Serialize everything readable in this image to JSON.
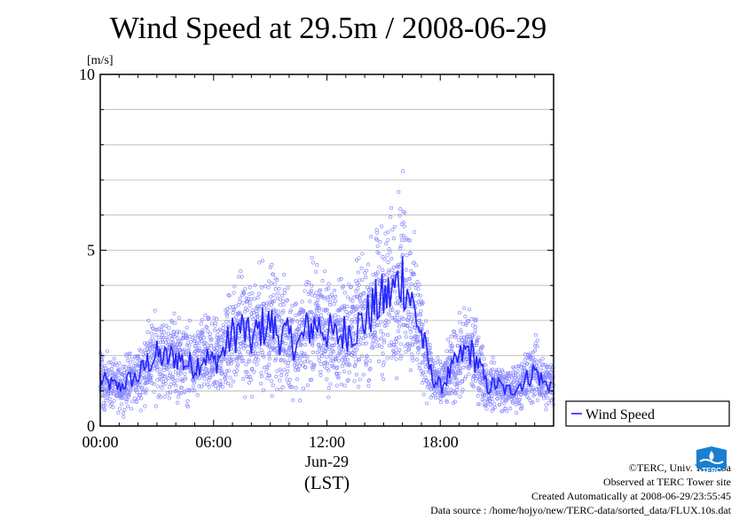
{
  "chart_data": {
    "type": "scatter",
    "title": "Wind Speed at 29.5m / 2008-06-29",
    "ylabel": "[m/s]",
    "ylim": [
      0,
      10
    ],
    "xlim": [
      "00:00",
      "24:00"
    ],
    "x_ticks": [
      "00:00",
      "06:00",
      "12:00",
      "18:00"
    ],
    "x_date_label": "Jun-29",
    "x_zone_label": "(LST)",
    "y_ticks": [
      0,
      5,
      10
    ],
    "grid": true,
    "legend_position": "right",
    "series": [
      {
        "name": "Wind Speed",
        "color": "#3333ff",
        "style": "line",
        "x": [
          "00:00",
          "00:30",
          "01:00",
          "01:30",
          "02:00",
          "02:30",
          "03:00",
          "03:30",
          "04:00",
          "04:30",
          "05:00",
          "05:30",
          "06:00",
          "06:30",
          "07:00",
          "07:30",
          "08:00",
          "08:30",
          "09:00",
          "09:30",
          "10:00",
          "10:30",
          "11:00",
          "11:30",
          "12:00",
          "12:30",
          "13:00",
          "13:30",
          "14:00",
          "14:30",
          "15:00",
          "15:30",
          "16:00",
          "16:30",
          "17:00",
          "17:30",
          "18:00",
          "18:30",
          "19:00",
          "19:30",
          "20:00",
          "20:30",
          "21:00",
          "21:30",
          "22:00",
          "22:30",
          "23:00",
          "23:30"
        ],
        "values": [
          1.3,
          1.2,
          1.1,
          1.3,
          1.4,
          1.8,
          2.0,
          1.9,
          2.0,
          1.8,
          1.7,
          2.0,
          1.8,
          2.1,
          2.6,
          2.8,
          2.4,
          2.8,
          2.9,
          2.6,
          2.5,
          2.3,
          2.8,
          2.9,
          2.7,
          2.5,
          2.7,
          2.8,
          3.0,
          3.4,
          3.6,
          3.8,
          4.3,
          3.5,
          2.6,
          1.5,
          1.1,
          1.5,
          1.9,
          2.2,
          1.8,
          1.1,
          1.2,
          1.0,
          1.1,
          1.3,
          1.6,
          1.2
        ]
      },
      {
        "name": "",
        "color": "#8888ff",
        "style": "scatter",
        "values_note_omitted": true
      }
    ]
  },
  "footer": {
    "copyright": "©TERC, Univ. Tsukuba",
    "site": "Observed at TERC Tower site",
    "created": "Created Automatically at 2008-06-29/23:55:45",
    "source": "Data source : /home/hojyo/new/TERC-data/sorted_data/FLUX.10s.dat"
  },
  "logo": {
    "text": "TERC",
    "color": "#1a7fd0"
  }
}
